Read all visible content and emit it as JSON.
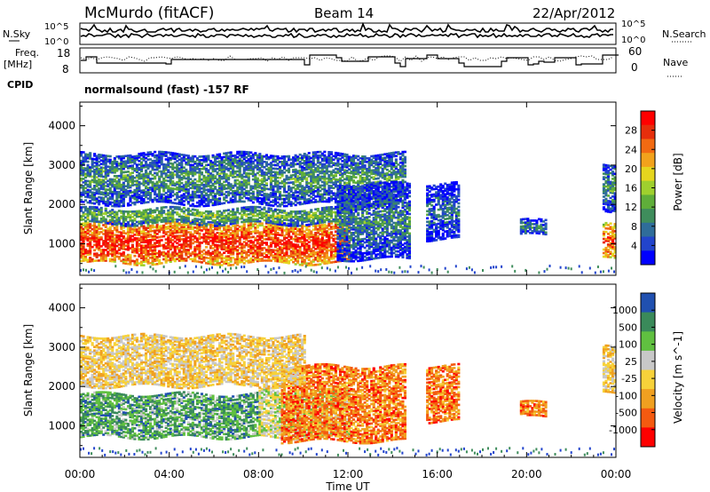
{
  "header": {
    "station": "McMurdo (fitACF)",
    "beam": "Beam 14",
    "date": "22/Apr/2012",
    "cpid_label": "CPID",
    "program": "normalsound (fast) -157 RF"
  },
  "aux_panels": {
    "nsky_label": "N.Sky",
    "nsearch_label": "N.Search",
    "freq_label_1": "Freq.",
    "freq_label_2": "[MHz]",
    "nave_label": "Nave",
    "noise_left_ticks": [
      "10^5",
      "10^0"
    ],
    "noise_right_ticks": [
      "10^5",
      "10^0"
    ],
    "freq_ticks": [
      "18",
      "8"
    ],
    "nave_ticks": [
      "60",
      "0"
    ]
  },
  "x_axis": {
    "label": "Time UT",
    "ticks": [
      "00:00",
      "04:00",
      "08:00",
      "12:00",
      "16:00",
      "20:00",
      "00:00"
    ],
    "tick_hours": [
      0,
      4,
      8,
      12,
      16,
      20,
      24
    ]
  },
  "chart_data": [
    {
      "type": "heatmap",
      "name": "power",
      "ylabel": "Slant Range [km]",
      "yticks": [
        1000,
        2000,
        3000,
        4000
      ],
      "ylim": [
        200,
        4600
      ],
      "xlim": [
        0,
        24
      ],
      "colorbar_label": "Power [dB]",
      "colorbar_ticks": [
        "28",
        "24",
        "20",
        "16",
        "12",
        "8",
        "4"
      ],
      "colorscale": [
        "#0000ff",
        "#2244cc",
        "#2f6d9a",
        "#3f8d5c",
        "#5fae3a",
        "#9fd02e",
        "#e6d61e",
        "#f2a21c",
        "#f26a12",
        "#e62e0c",
        "#ff0000"
      ],
      "regions": [
        {
          "t0": 0.0,
          "t1": 12.0,
          "r0": 500,
          "r1": 1500,
          "level": 0.92
        },
        {
          "t0": 0.0,
          "t1": 12.0,
          "r0": 1500,
          "r1": 1900,
          "level": 0.45
        },
        {
          "t0": 0.0,
          "t1": 14.5,
          "r0": 2000,
          "r1": 3300,
          "level": 0.35
        },
        {
          "t0": 11.5,
          "t1": 14.7,
          "r0": 600,
          "r1": 2500,
          "level": 0.3
        },
        {
          "t0": 15.5,
          "t1": 17.0,
          "r0": 1100,
          "r1": 2500,
          "level": 0.25
        },
        {
          "t0": 19.7,
          "t1": 20.9,
          "r0": 1200,
          "r1": 1600,
          "level": 0.3
        },
        {
          "t0": 23.4,
          "t1": 24.0,
          "r0": 600,
          "r1": 1500,
          "level": 0.85
        },
        {
          "t0": 23.4,
          "t1": 24.0,
          "r0": 1800,
          "r1": 3000,
          "level": 0.35
        }
      ]
    },
    {
      "type": "heatmap",
      "name": "velocity",
      "ylabel": "Slant Range [km]",
      "yticks": [
        1000,
        2000,
        3000,
        4000
      ],
      "ylim": [
        200,
        4600
      ],
      "xlim": [
        0,
        24
      ],
      "colorbar_label": "Velocity [m s^-1]",
      "colorbar_ticks": [
        "1000",
        "500",
        "100",
        "25",
        "-25",
        "-100",
        "-500",
        "-1000"
      ],
      "colorscale": [
        "#ff0000",
        "#f45a10",
        "#f0a020",
        "#f7d23a",
        "#c8c8c8",
        "#60c040",
        "#3a8a5a",
        "#2050b0"
      ],
      "regions": [
        {
          "t0": 0.0,
          "t1": 8.0,
          "r0": 700,
          "r1": 1800,
          "v": 0.75
        },
        {
          "t0": 8.0,
          "t1": 12.0,
          "r0": 700,
          "r1": 1900,
          "v": 0.55
        },
        {
          "t0": 9.0,
          "t1": 14.5,
          "r0": 600,
          "r1": 2500,
          "v": 0.25
        },
        {
          "t0": 0.0,
          "t1": 10.0,
          "r0": 2000,
          "r1": 3300,
          "v": 0.45
        },
        {
          "t0": 15.5,
          "t1": 17.0,
          "r0": 1100,
          "r1": 2500,
          "v": 0.25
        },
        {
          "t0": 19.7,
          "t1": 20.9,
          "r0": 1200,
          "r1": 1600,
          "v": 0.25
        },
        {
          "t0": 23.4,
          "t1": 24.0,
          "r0": 1800,
          "r1": 3000,
          "v": 0.45
        }
      ]
    }
  ]
}
